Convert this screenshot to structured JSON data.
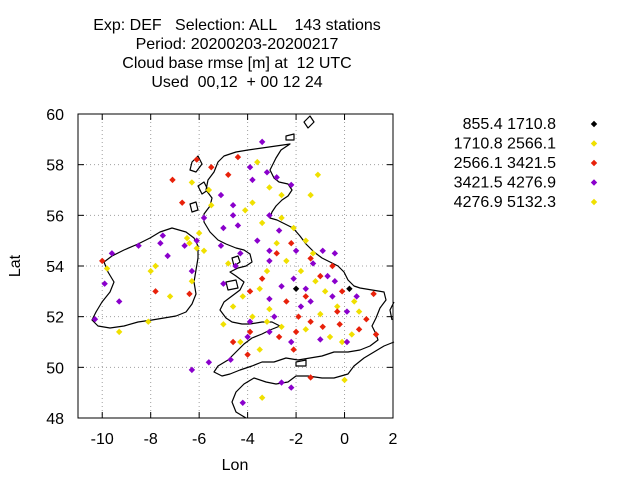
{
  "title_lines": [
    "Exp: DEF   Selection: ALL    143 stations",
    "Period: 20200203-20200217",
    "Cloud base rmse [m] at  12 UTC",
    "Used  00,12  + 00 12 24"
  ],
  "chart_data": {
    "type": "scatter",
    "xlabel": "Lon",
    "ylabel": "Lat",
    "xlim": [
      -11,
      2
    ],
    "ylim": [
      48,
      60
    ],
    "xticks": [
      "-10",
      "-8",
      "-6",
      "-4",
      "-2",
      "0",
      "2"
    ],
    "yticks": [
      "48",
      "50",
      "52",
      "54",
      "56",
      "58",
      "60"
    ],
    "grid": true,
    "legend_position": "right",
    "legend": [
      {
        "label": "855.4 1710.8",
        "color": "#000000"
      },
      {
        "label": "1710.8 2566.1",
        "color": "#f0e000"
      },
      {
        "label": "2566.1 3421.5",
        "color": "#e8210a"
      },
      {
        "label": "3421.5 4276.9",
        "color": "#8a00cc"
      },
      {
        "label": "4276.9 5132.3",
        "color": "#f0e000"
      }
    ],
    "series": [
      {
        "class": 0,
        "points": [
          [
            -2.0,
            53.1
          ],
          [
            0.2,
            53.1
          ]
        ]
      },
      {
        "class": 1,
        "points": [
          [
            -9.8,
            53.9
          ],
          [
            -8.0,
            53.8
          ],
          [
            -7.2,
            52.8
          ],
          [
            -6.3,
            53.4
          ],
          [
            -6.1,
            54.7
          ],
          [
            -5.8,
            54.6
          ],
          [
            -6.4,
            54.9
          ],
          [
            -6.0,
            55.3
          ],
          [
            -5.5,
            56.4
          ],
          [
            -4.1,
            56.2
          ],
          [
            -3.1,
            57.1
          ],
          [
            -3.4,
            55.7
          ],
          [
            -2.1,
            55.5
          ],
          [
            -1.6,
            55.0
          ],
          [
            -1.3,
            54.5
          ],
          [
            -2.4,
            54.2
          ],
          [
            -1.8,
            53.8
          ],
          [
            -1.2,
            53.4
          ],
          [
            -0.8,
            53.0
          ],
          [
            -3.5,
            53.1
          ],
          [
            -4.2,
            52.8
          ],
          [
            -3.8,
            52.0
          ],
          [
            -3.2,
            51.8
          ],
          [
            -2.6,
            51.6
          ],
          [
            -1.6,
            51.5
          ],
          [
            -0.6,
            51.2
          ],
          [
            -0.1,
            51.0
          ],
          [
            0.3,
            51.3
          ],
          [
            -4.6,
            52.4
          ],
          [
            -5.0,
            51.7
          ],
          [
            -4.3,
            51.0
          ],
          [
            -3.5,
            50.7
          ],
          [
            -3.4,
            48.8
          ],
          [
            0.0,
            49.5
          ],
          [
            -8.1,
            51.8
          ],
          [
            -9.3,
            51.4
          ],
          [
            -7.8,
            54.0
          ],
          [
            -3.6,
            58.1
          ],
          [
            -4.8,
            54.1
          ],
          [
            -1.4,
            56.8
          ],
          [
            -2.6,
            55.9
          ],
          [
            0.4,
            52.6
          ],
          [
            0.6,
            52.2
          ],
          [
            -0.3,
            52.4
          ],
          [
            -2.8,
            54.9
          ],
          [
            -3.2,
            53.8
          ],
          [
            -1.0,
            52.1
          ],
          [
            -6.3,
            57.3
          ],
          [
            -5.6,
            57.0
          ],
          [
            -3.8,
            56.5
          ],
          [
            -6.5,
            55.1
          ],
          [
            -1.1,
            57.6
          ],
          [
            -2.6,
            56.8
          ],
          [
            -3.1,
            52.3
          ]
        ]
      },
      {
        "class": 2,
        "points": [
          [
            -10.0,
            54.2
          ],
          [
            -7.8,
            53.0
          ],
          [
            -6.7,
            56.5
          ],
          [
            -7.1,
            57.4
          ],
          [
            -6.1,
            58.2
          ],
          [
            -5.5,
            57.9
          ],
          [
            -4.4,
            58.3
          ],
          [
            -4.8,
            57.6
          ],
          [
            -1.4,
            54.3
          ],
          [
            -2.8,
            54.5
          ],
          [
            -0.5,
            54.0
          ],
          [
            -3.9,
            53.0
          ],
          [
            -2.4,
            52.6
          ],
          [
            -1.6,
            52.8
          ],
          [
            -0.1,
            53.0
          ],
          [
            -1.9,
            52.0
          ],
          [
            -1.4,
            51.8
          ],
          [
            -0.9,
            51.6
          ],
          [
            -0.2,
            51.7
          ],
          [
            0.6,
            51.5
          ],
          [
            1.2,
            52.9
          ],
          [
            1.3,
            51.3
          ],
          [
            -2.0,
            51.4
          ],
          [
            -2.7,
            51.2
          ],
          [
            -3.9,
            51.4
          ],
          [
            -4.0,
            50.5
          ],
          [
            -2.1,
            50.7
          ],
          [
            -1.4,
            49.6
          ],
          [
            -6.4,
            52.9
          ],
          [
            -0.3,
            52.2
          ],
          [
            -3.4,
            53.5
          ],
          [
            -2.2,
            54.9
          ],
          [
            -1.0,
            53.6
          ],
          [
            0.9,
            51.9
          ],
          [
            -4.6,
            51.0
          ]
        ]
      },
      {
        "class": 3,
        "points": [
          [
            -9.9,
            53.3
          ],
          [
            -9.3,
            52.6
          ],
          [
            -9.6,
            54.5
          ],
          [
            -10.3,
            51.9
          ],
          [
            -8.5,
            54.8
          ],
          [
            -7.5,
            55.2
          ],
          [
            -7.3,
            54.4
          ],
          [
            -6.6,
            54.8
          ],
          [
            -6.1,
            55.0
          ],
          [
            -5.8,
            55.9
          ],
          [
            -5.1,
            56.8
          ],
          [
            -4.6,
            56.4
          ],
          [
            -4.6,
            56.0
          ],
          [
            -5.0,
            55.5
          ],
          [
            -4.4,
            55.6
          ],
          [
            -3.2,
            57.7
          ],
          [
            -2.8,
            57.5
          ],
          [
            -3.9,
            57.9
          ],
          [
            -3.8,
            57.4
          ],
          [
            -2.2,
            57.2
          ],
          [
            -3.1,
            56.0
          ],
          [
            -3.6,
            55.0
          ],
          [
            -2.7,
            55.4
          ],
          [
            -3.1,
            54.6
          ],
          [
            -4.3,
            54.5
          ],
          [
            -4.5,
            54.0
          ],
          [
            -3.1,
            54.2
          ],
          [
            -2.0,
            54.6
          ],
          [
            -1.3,
            54.1
          ],
          [
            -0.9,
            54.6
          ],
          [
            -0.4,
            54.5
          ],
          [
            -0.7,
            53.6
          ],
          [
            -1.6,
            53.1
          ],
          [
            -2.6,
            53.2
          ],
          [
            -3.1,
            52.7
          ],
          [
            -2.9,
            52.0
          ],
          [
            -1.4,
            52.6
          ],
          [
            -0.5,
            52.8
          ],
          [
            0.1,
            52.2
          ],
          [
            -3.9,
            51.8
          ],
          [
            -4.0,
            51.2
          ],
          [
            -3.1,
            51.4
          ],
          [
            -2.2,
            51.0
          ],
          [
            -1.0,
            51.1
          ],
          [
            0.1,
            51.0
          ],
          [
            -2.6,
            49.4
          ],
          [
            -2.2,
            49.2
          ],
          [
            -4.2,
            48.6
          ],
          [
            -5.6,
            50.2
          ],
          [
            -4.7,
            50.3
          ],
          [
            -6.3,
            49.9
          ],
          [
            -0.4,
            53.4
          ],
          [
            0.5,
            52.8
          ],
          [
            -5.0,
            53.3
          ],
          [
            -3.4,
            58.9
          ],
          [
            -6.3,
            53.8
          ],
          [
            -7.6,
            54.9
          ],
          [
            -2.1,
            53.5
          ],
          [
            -1.8,
            52.4
          ],
          [
            -5.1,
            54.8
          ]
        ]
      },
      {
        "class": 4,
        "points": []
      }
    ]
  }
}
